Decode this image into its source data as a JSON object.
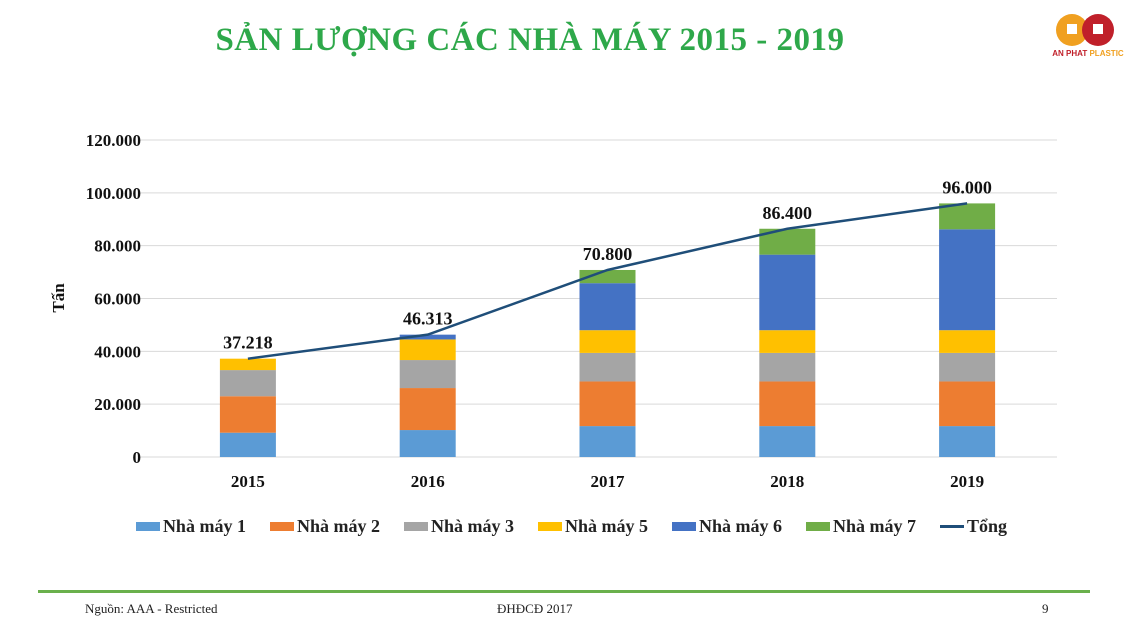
{
  "title": "SẢN LƯỢNG CÁC NHÀ MÁY 2015 - 2019",
  "logo": {
    "text": "AN PHAT PLASTIC",
    "colors": [
      "#f0a020",
      "#c0202a"
    ]
  },
  "footer": {
    "source": "Nguồn: AAA - Restricted",
    "center": "ĐHĐCĐ 2017",
    "page": "9"
  },
  "chart_data": {
    "type": "bar",
    "stacked": true,
    "title": "",
    "xlabel": "",
    "ylabel": "Tấn",
    "ylim": [
      0,
      120000
    ],
    "yticks": [
      "0",
      "20.000",
      "40.000",
      "60.000",
      "80.000",
      "100.000",
      "120.000"
    ],
    "ytick_values": [
      0,
      20000,
      40000,
      60000,
      80000,
      100000,
      120000
    ],
    "grid": true,
    "legend": "bottom",
    "categories": [
      "2015",
      "2016",
      "2017",
      "2018",
      "2019"
    ],
    "series": [
      {
        "name": "Nhà máy 1",
        "color": "#5b9bd5",
        "values": [
          9200,
          10200,
          11700,
          11700,
          11700
        ]
      },
      {
        "name": "Nhà máy 2",
        "color": "#ed7d31",
        "values": [
          13800,
          15900,
          16900,
          16900,
          16900
        ]
      },
      {
        "name": "Nhà máy 3",
        "color": "#a5a5a5",
        "values": [
          9900,
          10600,
          10800,
          10800,
          10800
        ]
      },
      {
        "name": "Nhà máy 5",
        "color": "#ffc000",
        "values": [
          4318,
          7800,
          8600,
          8600,
          8600
        ]
      },
      {
        "name": "Nhà máy 6",
        "color": "#4472c4",
        "values": [
          0,
          1813,
          17800,
          28600,
          38200
        ]
      },
      {
        "name": "Nhà máy 7",
        "color": "#70ad47",
        "values": [
          0,
          0,
          5000,
          9800,
          9800
        ]
      }
    ],
    "line": {
      "name": "Tổng",
      "color": "#1f4e79",
      "values": [
        37218,
        46313,
        70800,
        86400,
        96000
      ]
    },
    "data_labels": [
      "37.218",
      "46.313",
      "70.800",
      "86.400",
      "96.000"
    ]
  }
}
